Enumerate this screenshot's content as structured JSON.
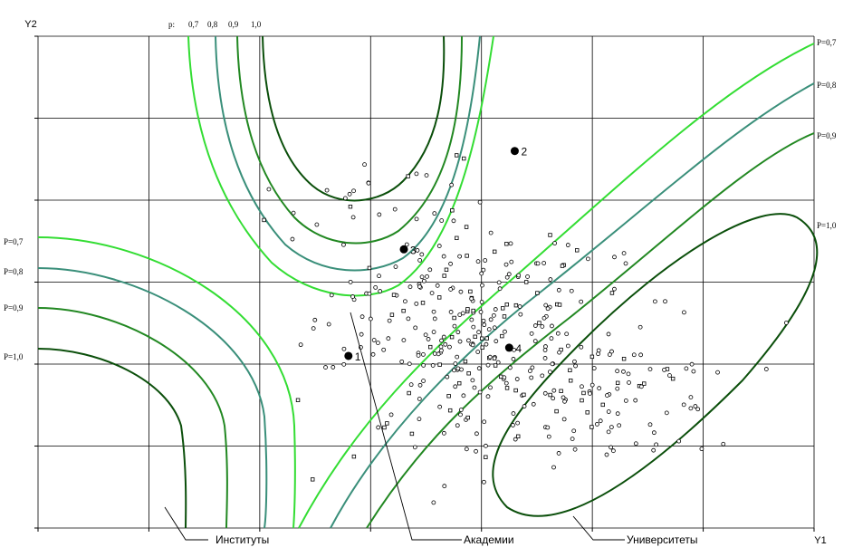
{
  "chart_data": {
    "type": "scatter",
    "xlabel": "Y1",
    "ylabel": "Y2",
    "grid": true,
    "xlim": [
      0,
      7
    ],
    "ylim": [
      0,
      6
    ],
    "contours": {
      "top_header": "p:",
      "top_labels": [
        "0,7",
        "0,8",
        "0,9",
        "1,0"
      ],
      "left_labels": [
        "P=0,7",
        "P=0,8",
        "P=0,9",
        "P=1,0"
      ],
      "right_labels": [
        "P=0,7",
        "P=0,8",
        "P=0,9",
        "P=1,0"
      ],
      "levels": [
        0.7,
        0.8,
        0.9,
        1.0
      ],
      "colors": {
        "0.7": "#33dd33",
        "0.8": "#3a8f7a",
        "0.9": "#228822",
        "1.0": "#0b4f0b"
      }
    },
    "centroids": [
      {
        "label": "1",
        "x": 2.8,
        "y": 2.1
      },
      {
        "label": "2",
        "x": 4.3,
        "y": 4.6
      },
      {
        "label": "3",
        "x": 3.3,
        "y": 3.4
      },
      {
        "label": "4",
        "x": 4.25,
        "y": 2.2
      }
    ],
    "group_labels": [
      "Институты",
      "Академии",
      "Университеты"
    ]
  }
}
